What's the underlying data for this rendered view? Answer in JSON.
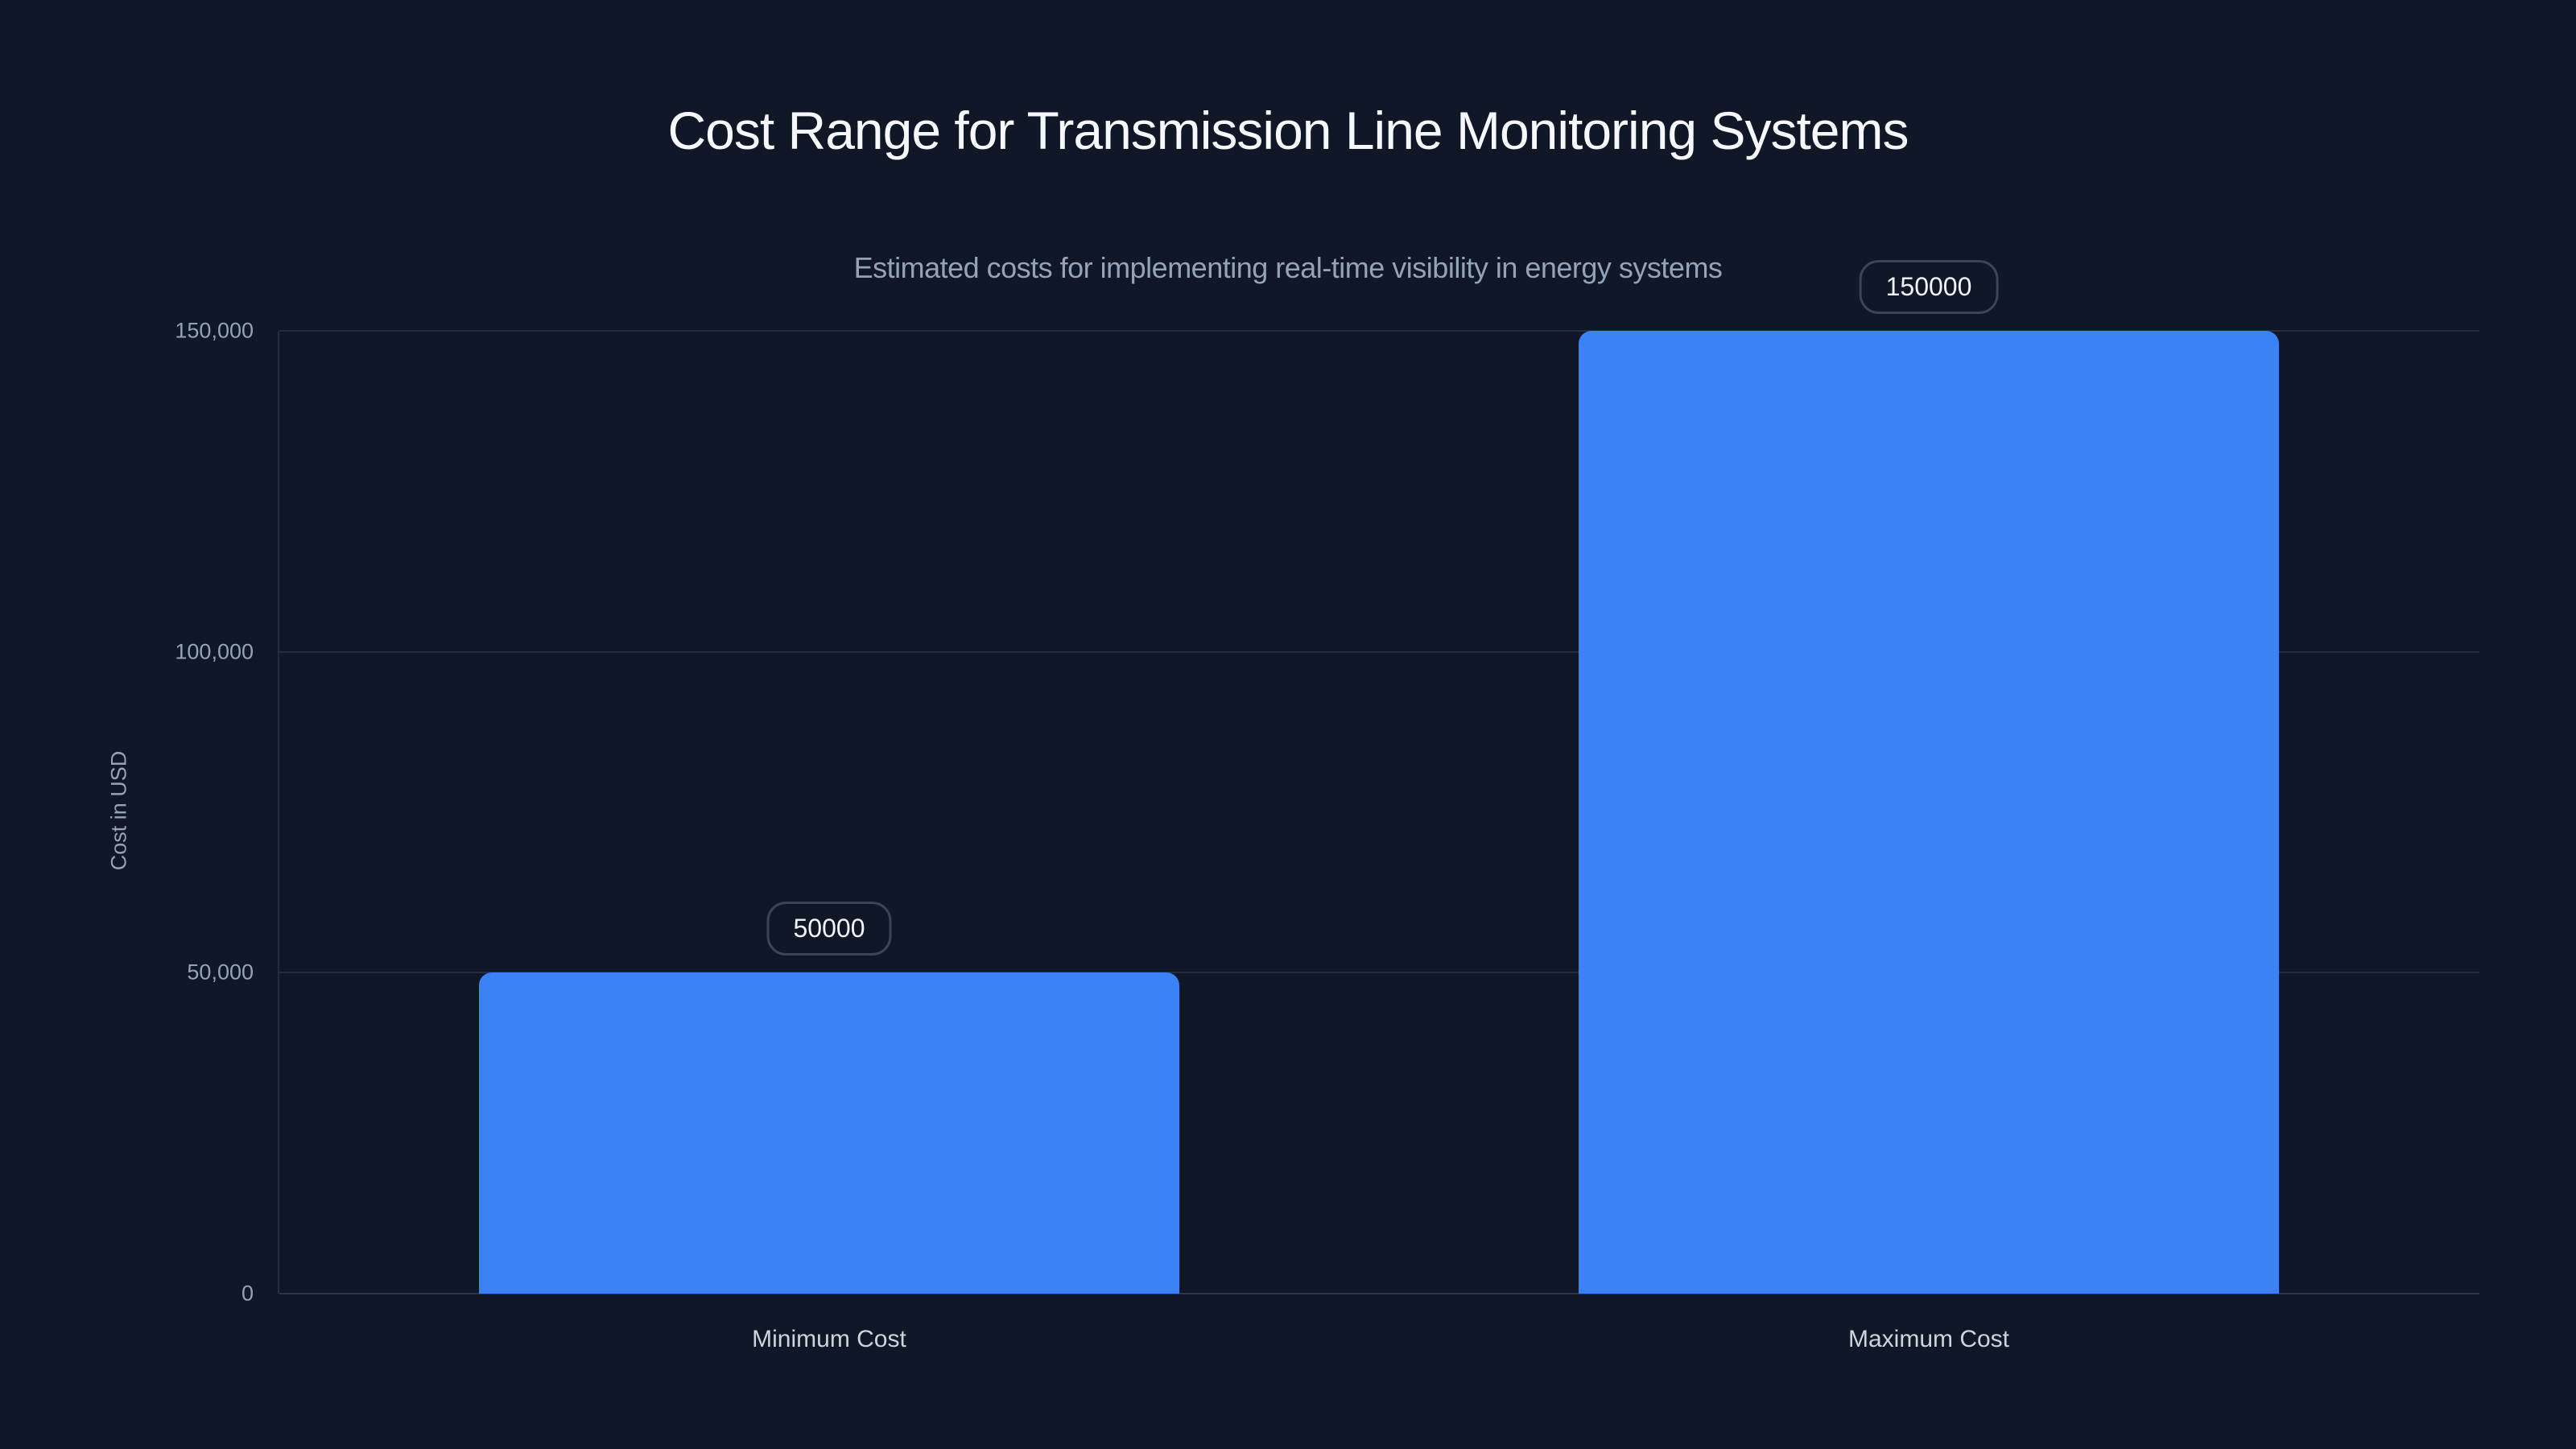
{
  "page": {
    "background": "#101726"
  },
  "header": {
    "title": "Cost Range for Transmission Line Monitoring Systems",
    "subtitle": "Estimated costs for implementing real-time visibility in energy systems"
  },
  "chart_data": {
    "type": "bar",
    "title": "Cost Range for Transmission Line Monitoring Systems",
    "subtitle": "Estimated costs for implementing real-time visibility in energy systems",
    "categories": [
      "Minimum Cost",
      "Maximum Cost"
    ],
    "values": [
      50000,
      150000
    ],
    "value_labels": [
      "50000",
      "150000"
    ],
    "xlabel": "",
    "ylabel": "Cost in USD",
    "ylim": [
      0,
      150000
    ],
    "yticks": [
      {
        "value": 150000,
        "label": "150,000"
      },
      {
        "value": 100000,
        "label": "100,000"
      },
      {
        "value": 50000,
        "label": "50,000"
      },
      {
        "value": 0,
        "label": "0"
      }
    ],
    "grid": "horizontal",
    "legend": "none",
    "bar_color": "#3b82f6",
    "value_label_style": "outlined-pill"
  },
  "colors": {
    "background": "#101726",
    "bar": "#3b82f6",
    "title_text": "#f5f8fc",
    "subtitle_text": "#94a3b8",
    "tick_text": "#94a3b8",
    "category_label_text": "#cbd5e1",
    "gridline": "#252c40",
    "axis_line": "#2b364d",
    "badge_border": "#3a4556",
    "badge_text": "#f1f5f9"
  }
}
